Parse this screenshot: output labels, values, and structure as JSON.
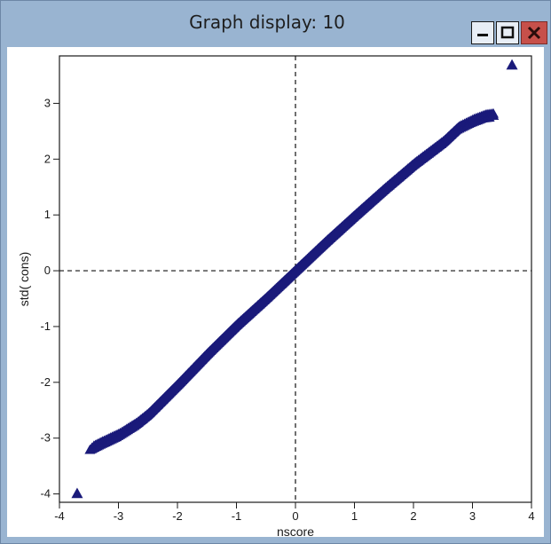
{
  "window": {
    "title": "Graph display: 10",
    "controls": {
      "minimize": "minimize-icon",
      "maximize": "maximize-icon",
      "close": "close-icon"
    },
    "colors": {
      "frame": "#99b4d1",
      "close": "#c7504a",
      "marker": "#1a1a7a"
    }
  },
  "chart_data": {
    "type": "scatter",
    "title": "",
    "xlabel": "nscore",
    "ylabel": "std( cons)",
    "xlim": [
      -4,
      4
    ],
    "ylim": [
      -4.15,
      3.85
    ],
    "xticks": [
      -4,
      -3,
      -2,
      -1,
      0,
      1,
      2,
      3,
      4
    ],
    "yticks": [
      -4,
      -3,
      -2,
      -1,
      0,
      1,
      2,
      3
    ],
    "reference_lines": {
      "x": 0,
      "y": 0,
      "style": "dashed"
    },
    "marker": "triangle",
    "curve_points": [
      [
        -3.45,
        -3.18
      ],
      [
        -3.3,
        -3.1
      ],
      [
        -3.0,
        -2.95
      ],
      [
        -2.7,
        -2.75
      ],
      [
        -2.5,
        -2.58
      ],
      [
        -2.0,
        -2.05
      ],
      [
        -1.5,
        -1.5
      ],
      [
        -1.0,
        -0.98
      ],
      [
        -0.5,
        -0.5
      ],
      [
        0.0,
        0.0
      ],
      [
        0.5,
        0.5
      ],
      [
        1.0,
        0.98
      ],
      [
        1.5,
        1.45
      ],
      [
        2.0,
        1.9
      ],
      [
        2.5,
        2.3
      ],
      [
        2.75,
        2.55
      ],
      [
        3.0,
        2.68
      ],
      [
        3.2,
        2.76
      ],
      [
        3.35,
        2.78
      ]
    ],
    "outliers": [
      [
        -3.7,
        -4.0
      ],
      [
        3.67,
        3.68
      ]
    ]
  }
}
